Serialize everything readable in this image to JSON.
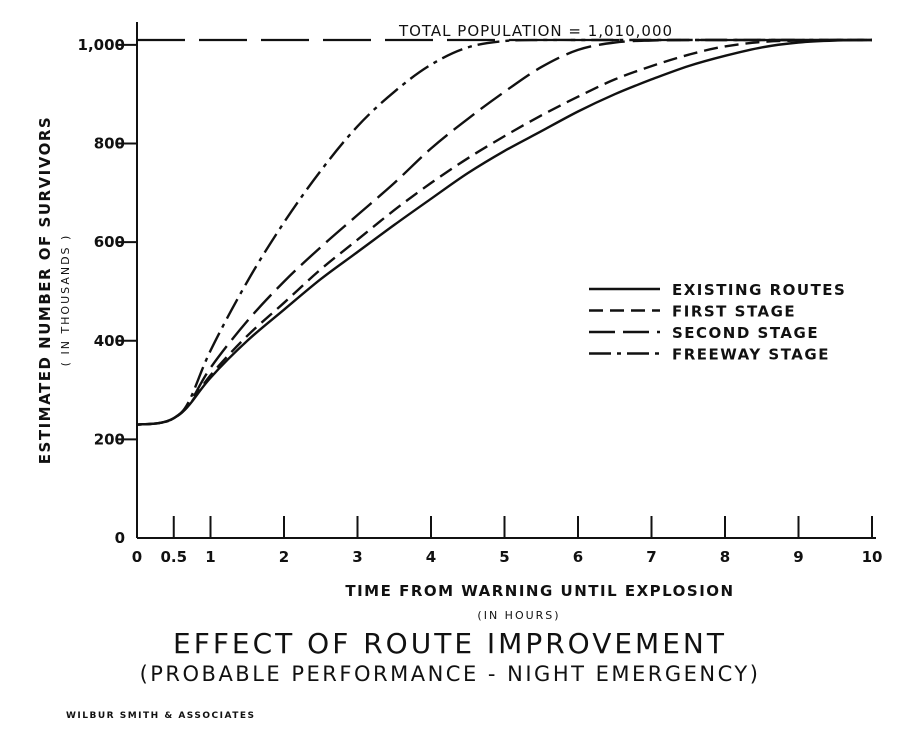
{
  "chart_data": {
    "type": "line",
    "title": "EFFECT OF ROUTE IMPROVEMENT",
    "subtitle": "(PROBABLE PERFORMANCE - NIGHT EMERGENCY)",
    "xlabel": "TIME FROM WARNING UNTIL EXPLOSION",
    "xlabel_sub": "(IN HOURS)",
    "ylabel": "ESTIMATED NUMBER OF SURVIVORS",
    "ylabel_sub": "( IN THOUSANDS )",
    "xlim": [
      0,
      10
    ],
    "ylim": [
      0,
      1010
    ],
    "x_ticks": [
      {
        "value": 0,
        "label": "0"
      },
      {
        "value": 0.5,
        "label": "0.5"
      },
      {
        "value": 1,
        "label": "1"
      },
      {
        "value": 2,
        "label": "2"
      },
      {
        "value": 3,
        "label": "3"
      },
      {
        "value": 4,
        "label": "4"
      },
      {
        "value": 5,
        "label": "5"
      },
      {
        "value": 6,
        "label": "6"
      },
      {
        "value": 7,
        "label": "7"
      },
      {
        "value": 8,
        "label": "8"
      },
      {
        "value": 9,
        "label": "9"
      },
      {
        "value": 10,
        "label": "10"
      }
    ],
    "y_ticks": [
      {
        "value": 0,
        "label": "0"
      },
      {
        "value": 200,
        "label": "200"
      },
      {
        "value": 400,
        "label": "400"
      },
      {
        "value": 600,
        "label": "600"
      },
      {
        "value": 800,
        "label": "800"
      },
      {
        "value": 1000,
        "label": "1,000"
      }
    ],
    "annotation": {
      "text": "TOTAL POPULATION = 1,010,000",
      "value": 1010
    },
    "legend_position": "right",
    "series": [
      {
        "name": "EXISTING ROUTES",
        "style": "solid",
        "x": [
          0,
          0.3,
          0.5,
          0.7,
          1,
          1.5,
          2,
          2.5,
          3,
          3.5,
          4,
          4.5,
          5,
          5.5,
          6,
          6.5,
          7,
          7.5,
          8,
          8.5,
          9,
          9.5,
          10
        ],
        "y": [
          230,
          233,
          243,
          268,
          325,
          400,
          463,
          525,
          580,
          635,
          688,
          740,
          785,
          825,
          865,
          900,
          930,
          957,
          978,
          995,
          1005,
          1009,
          1010
        ]
      },
      {
        "name": "FIRST STAGE",
        "style": "dashed",
        "x": [
          0,
          0.3,
          0.5,
          0.7,
          1,
          1.5,
          2,
          2.5,
          3,
          3.5,
          4,
          4.5,
          5,
          5.5,
          6,
          6.5,
          7,
          7.5,
          8,
          8.5,
          9,
          9.5,
          10
        ],
        "y": [
          230,
          233,
          243,
          268,
          330,
          410,
          477,
          545,
          605,
          665,
          720,
          770,
          815,
          857,
          895,
          930,
          957,
          980,
          997,
          1006,
          1009,
          1010,
          1010
        ]
      },
      {
        "name": "SECOND STAGE",
        "style": "long-dash",
        "x": [
          0,
          0.3,
          0.5,
          0.7,
          1,
          1.5,
          2,
          2.5,
          3,
          3.5,
          4,
          4.5,
          5,
          5.5,
          6,
          6.5,
          7,
          7.5,
          8,
          8.5,
          9,
          9.5,
          10
        ],
        "y": [
          230,
          233,
          243,
          270,
          345,
          440,
          520,
          590,
          655,
          720,
          790,
          850,
          905,
          955,
          990,
          1005,
          1009,
          1010,
          1010,
          1010,
          1010,
          1010,
          1010
        ]
      },
      {
        "name": "FREEWAY STAGE",
        "style": "dash-dot",
        "x": [
          0,
          0.3,
          0.5,
          0.7,
          1,
          1.5,
          2,
          2.5,
          3,
          3.5,
          4,
          4.5,
          5,
          5.5,
          6,
          6.5,
          7,
          7.5,
          8,
          8.5,
          9,
          9.5,
          10
        ],
        "y": [
          230,
          233,
          243,
          275,
          380,
          520,
          640,
          745,
          835,
          905,
          960,
          995,
          1008,
          1010,
          1010,
          1010,
          1010,
          1010,
          1010,
          1010,
          1010,
          1010,
          1010
        ]
      }
    ]
  },
  "credit": "WILBUR SMITH & ASSOCIATES"
}
